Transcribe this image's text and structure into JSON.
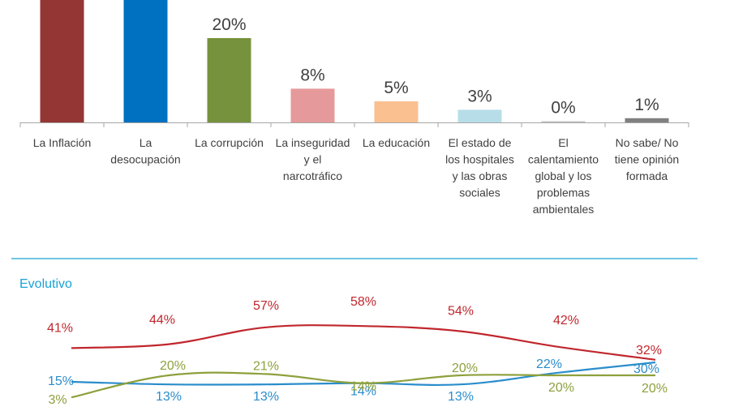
{
  "chart_data": [
    {
      "type": "bar",
      "categories": [
        [
          "La Inflación"
        ],
        [
          "La",
          "desocupación"
        ],
        [
          "La corrupción"
        ],
        [
          "La inseguridad",
          "y el",
          "narcotráfico"
        ],
        [
          "La educación"
        ],
        [
          "El estado de",
          "los hospitales",
          "y las obras",
          "sociales"
        ],
        [
          "El",
          "calentamiento",
          "global y los",
          "problemas",
          "ambientales"
        ],
        [
          "No sabe/ No",
          "tiene opinión",
          "formada"
        ]
      ],
      "values": [
        null,
        null,
        20,
        8,
        5,
        3,
        0,
        1
      ],
      "value_labels": [
        "",
        "",
        "20%",
        "8%",
        "5%",
        "3%",
        "0%",
        "1%"
      ],
      "colors": [
        "#943634",
        "#0070c0",
        "#76923c",
        "#e6999b",
        "#fac090",
        "#b7dee8",
        "#c6c6c6",
        "#808080"
      ],
      "grid": false
    },
    {
      "type": "line",
      "title": "Evolutivo",
      "x_count": 8,
      "series": [
        {
          "color": "#c0272d",
          "values": [
            41,
            44,
            57,
            58,
            54,
            42,
            32
          ],
          "labels": [
            "41%",
            "44%",
            "57%",
            "58%",
            "54%",
            "42%",
            "32%"
          ]
        },
        {
          "color": "#2a8dcb",
          "values": [
            15,
            13,
            13,
            14,
            13,
            22,
            30
          ],
          "labels": [
            "15%",
            "13%",
            "13%",
            "14%",
            "13%",
            "22%",
            "30%"
          ]
        },
        {
          "color": "#8da03c",
          "values": [
            3,
            20,
            21,
            14,
            20,
            20,
            20
          ],
          "labels": [
            "3%",
            "20%",
            "21%",
            "14%",
            "20%",
            "20%",
            "20%"
          ]
        }
      ],
      "grid": false
    }
  ]
}
